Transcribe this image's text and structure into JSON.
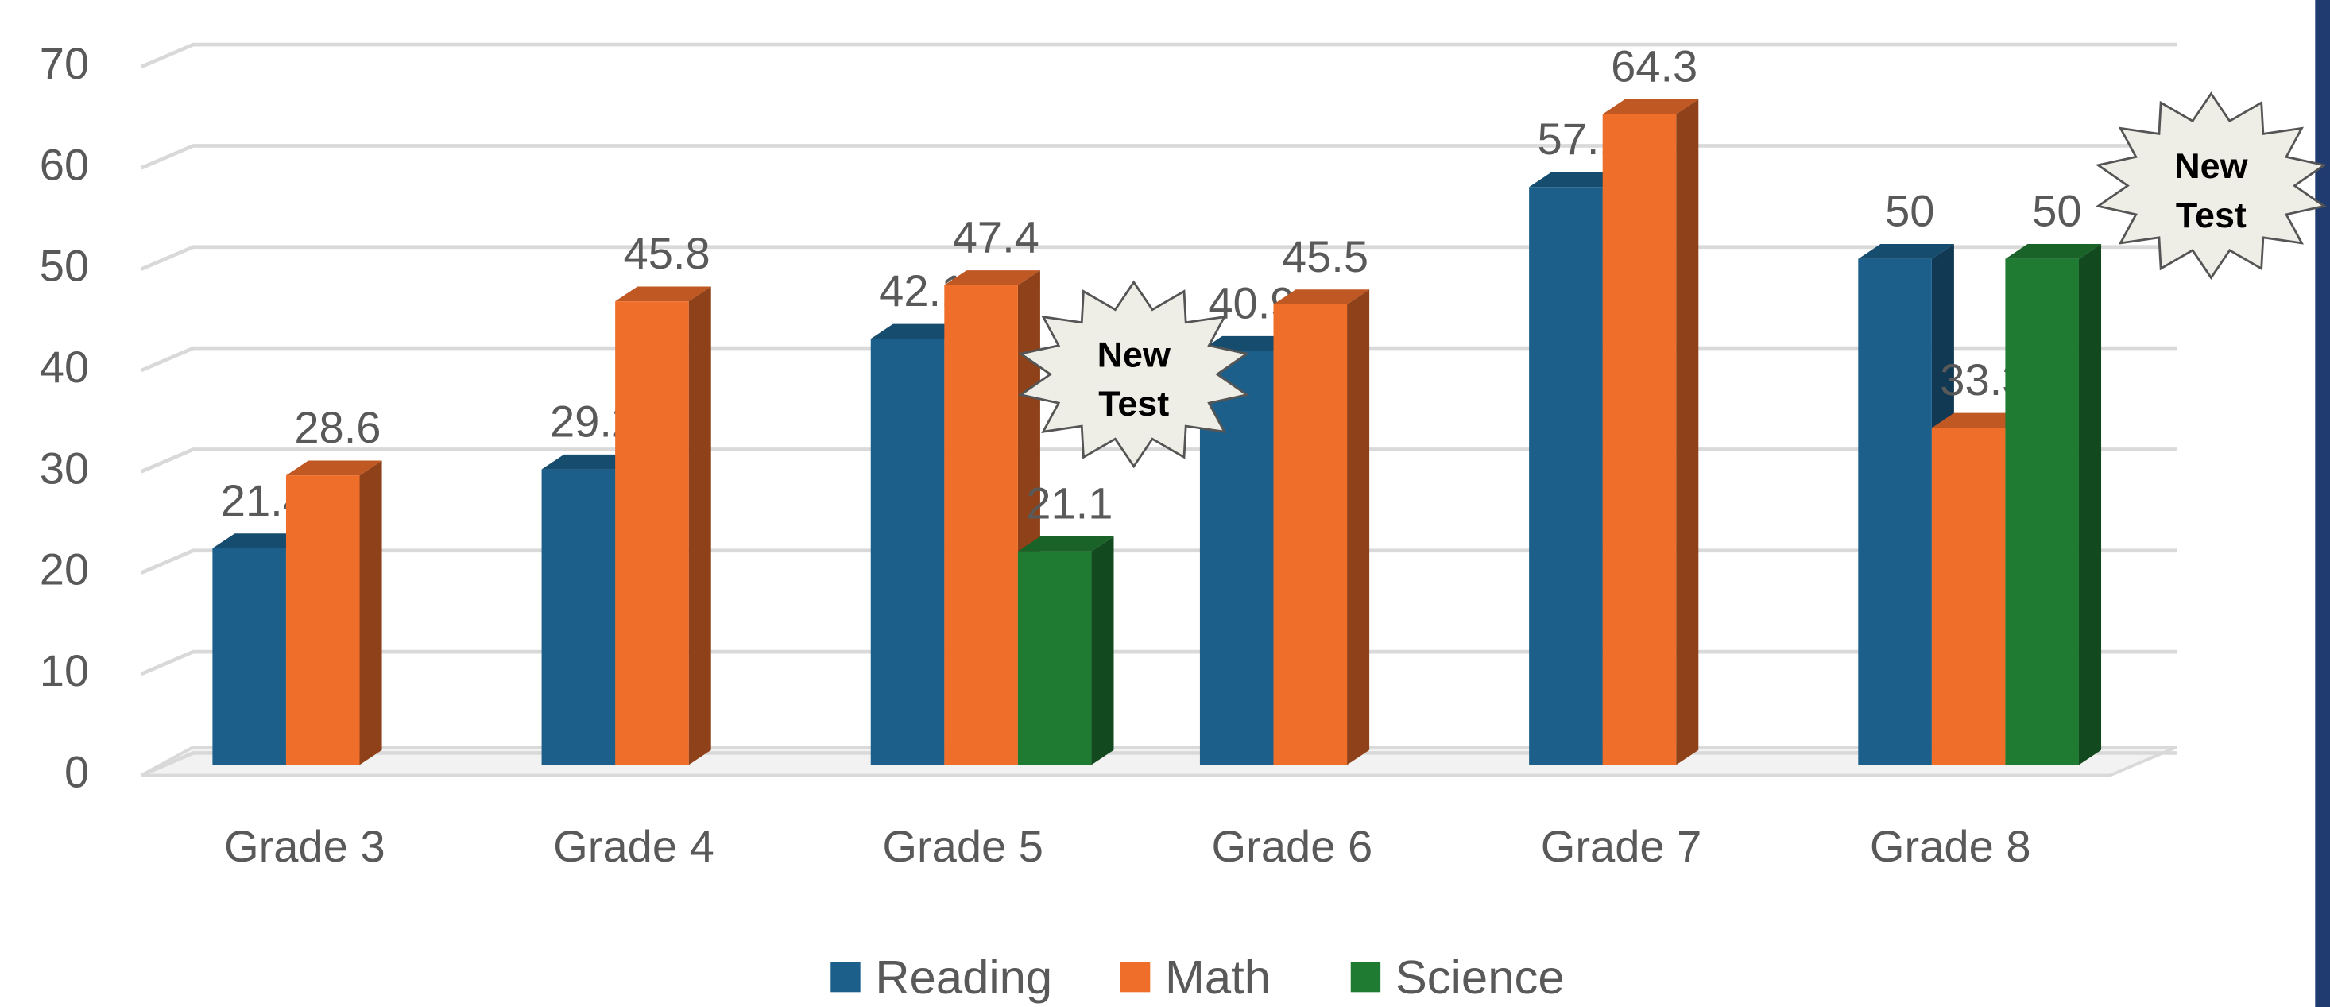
{
  "chart_data": {
    "type": "bar",
    "categories": [
      "Grade 3",
      "Grade 4",
      "Grade 5",
      "Grade 6",
      "Grade 7",
      "Grade 8"
    ],
    "series": [
      {
        "name": "Reading",
        "color": "#1c5f8a",
        "values": [
          21.4,
          29.2,
          42.1,
          40.9,
          57.1,
          50
        ]
      },
      {
        "name": "Math",
        "color": "#ef6e2a",
        "values": [
          28.6,
          45.8,
          47.4,
          45.5,
          64.3,
          33.3
        ]
      },
      {
        "name": "Science",
        "color": "#1f7a32",
        "values": [
          null,
          null,
          21.1,
          null,
          null,
          50
        ]
      }
    ],
    "ylim": [
      0,
      70
    ],
    "yticks": [
      0,
      10,
      20,
      30,
      40,
      50,
      60,
      70
    ],
    "grid": true,
    "legend": "bottom",
    "annotations": [
      {
        "lines": [
          "New",
          "Test"
        ],
        "category": 2
      },
      {
        "lines": [
          "New",
          "Test"
        ],
        "category": 5
      }
    ]
  }
}
